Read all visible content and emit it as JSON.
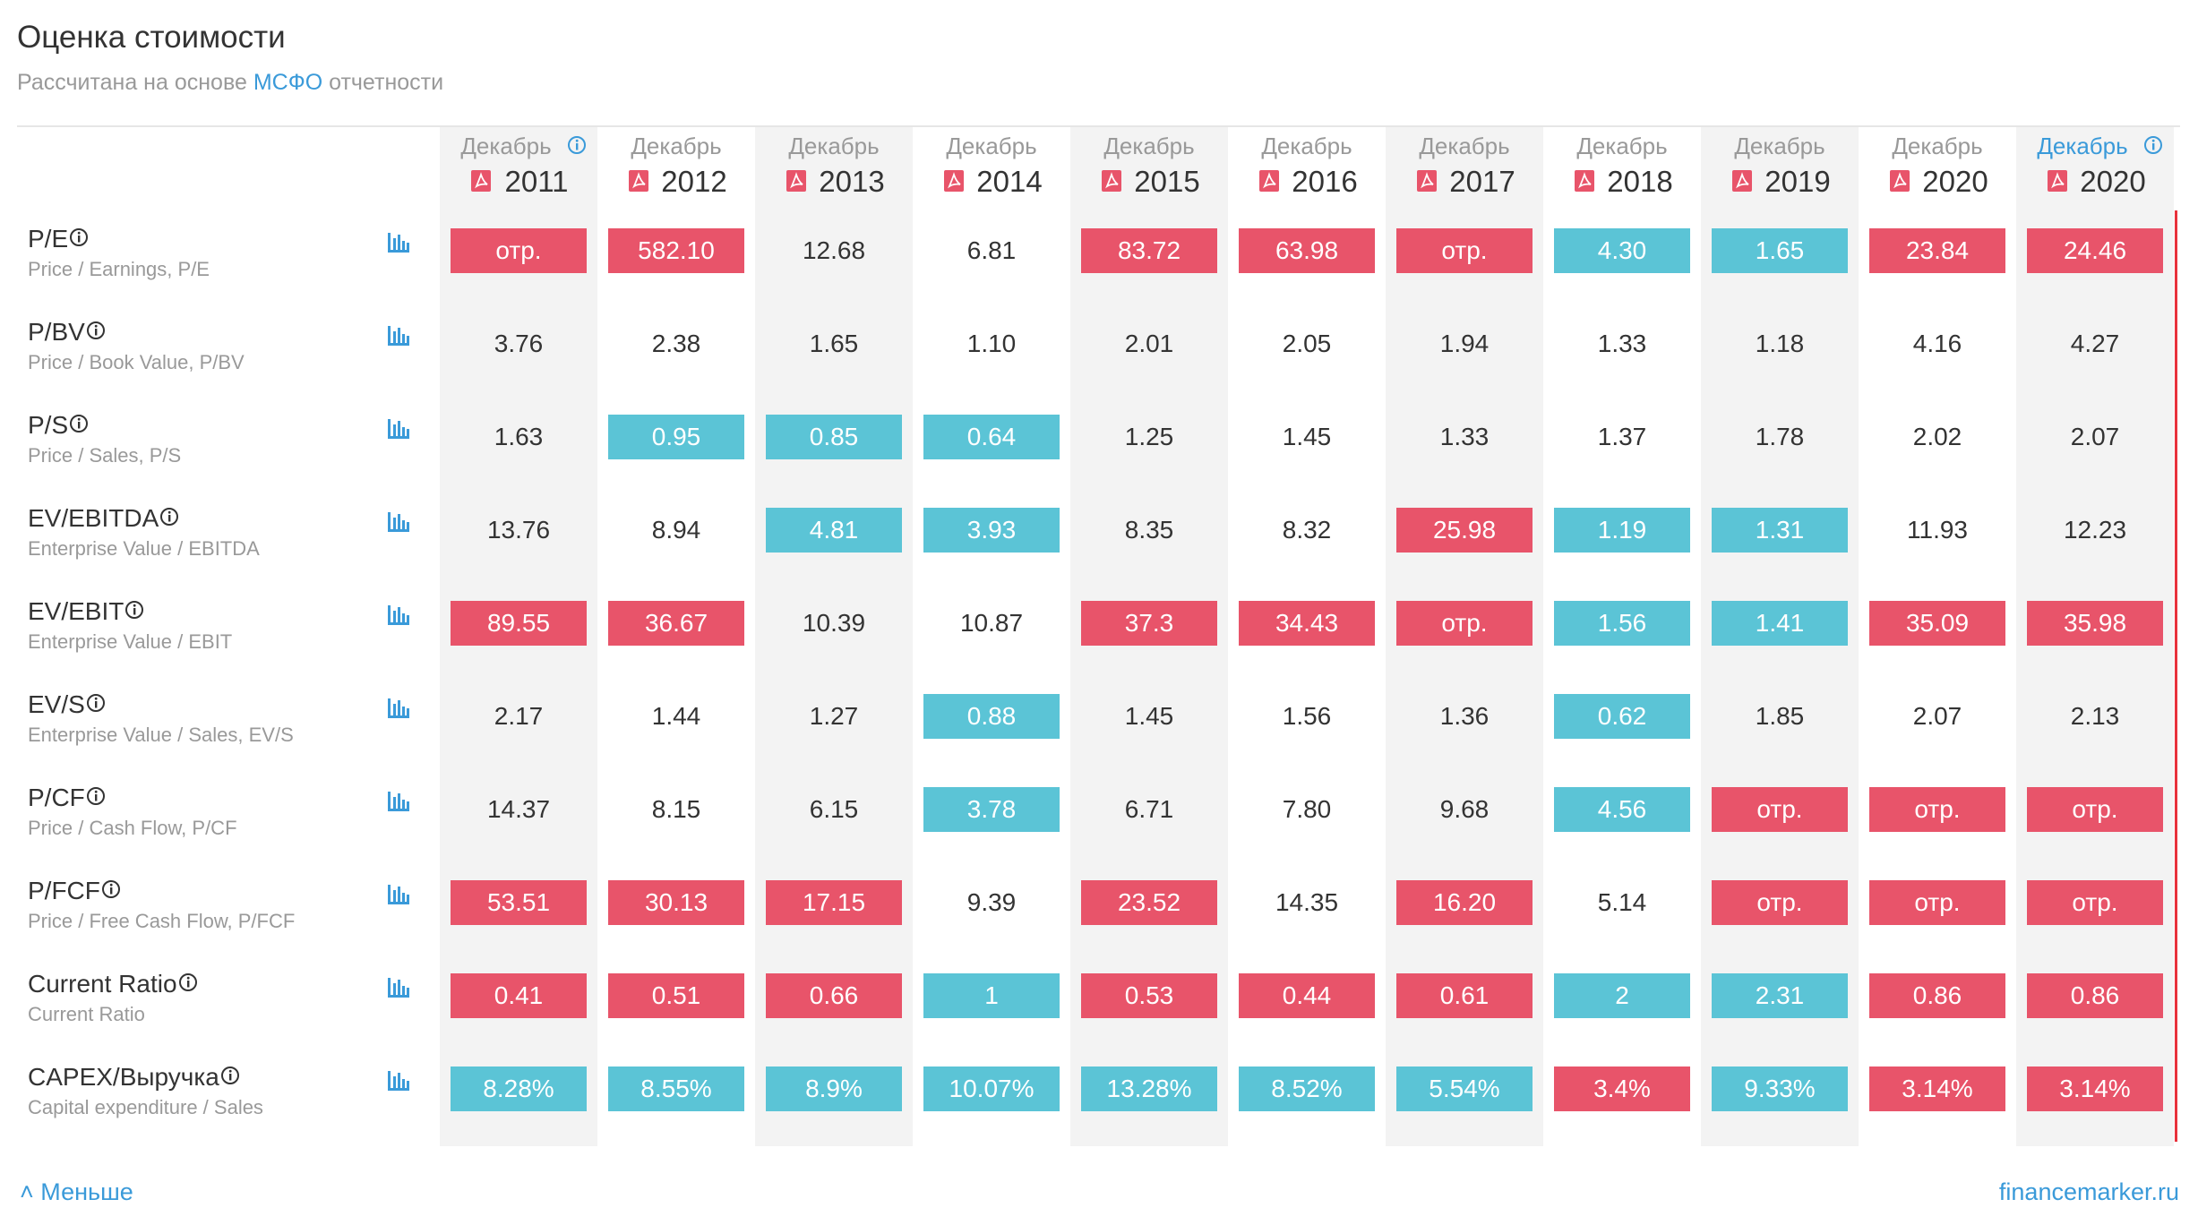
{
  "header": {
    "title": "Оценка стоимости",
    "subtitle_prefix": "Рассчитана на основе ",
    "subtitle_link": "МСФО",
    "subtitle_suffix": " отчетности"
  },
  "columns": [
    {
      "month": "Декабрь",
      "year": "2011",
      "info": true,
      "current": false
    },
    {
      "month": "Декабрь",
      "year": "2012",
      "info": false,
      "current": false
    },
    {
      "month": "Декабрь",
      "year": "2013",
      "info": false,
      "current": false
    },
    {
      "month": "Декабрь",
      "year": "2014",
      "info": false,
      "current": false
    },
    {
      "month": "Декабрь",
      "year": "2015",
      "info": false,
      "current": false
    },
    {
      "month": "Декабрь",
      "year": "2016",
      "info": false,
      "current": false
    },
    {
      "month": "Декабрь",
      "year": "2017",
      "info": false,
      "current": false
    },
    {
      "month": "Декабрь",
      "year": "2018",
      "info": false,
      "current": false
    },
    {
      "month": "Декабрь",
      "year": "2019",
      "info": false,
      "current": false
    },
    {
      "month": "Декабрь",
      "year": "2020",
      "info": false,
      "current": false
    },
    {
      "month": "Декабрь",
      "year": "2020",
      "info": true,
      "current": true
    }
  ],
  "rows": [
    {
      "name": "P/E",
      "subtitle": "Price / Earnings, P/E",
      "cells": [
        "отр.",
        "582.10",
        "12.68",
        "6.81",
        "83.72",
        "63.98",
        "отр.",
        "4.30",
        "1.65",
        "23.84",
        "24.46"
      ],
      "tones": [
        "red",
        "red",
        "plain",
        "plain",
        "red",
        "red",
        "red",
        "blue",
        "blue",
        "red",
        "red"
      ]
    },
    {
      "name": "P/BV",
      "subtitle": "Price / Book Value, P/BV",
      "cells": [
        "3.76",
        "2.38",
        "1.65",
        "1.10",
        "2.01",
        "2.05",
        "1.94",
        "1.33",
        "1.18",
        "4.16",
        "4.27"
      ],
      "tones": [
        "plain",
        "plain",
        "plain",
        "plain",
        "plain",
        "plain",
        "plain",
        "plain",
        "plain",
        "plain",
        "plain"
      ]
    },
    {
      "name": "P/S",
      "subtitle": "Price / Sales, P/S",
      "cells": [
        "1.63",
        "0.95",
        "0.85",
        "0.64",
        "1.25",
        "1.45",
        "1.33",
        "1.37",
        "1.78",
        "2.02",
        "2.07"
      ],
      "tones": [
        "plain",
        "blue",
        "blue",
        "blue",
        "plain",
        "plain",
        "plain",
        "plain",
        "plain",
        "plain",
        "plain"
      ]
    },
    {
      "name": "EV/EBITDA",
      "subtitle": "Enterprise Value / EBITDA",
      "cells": [
        "13.76",
        "8.94",
        "4.81",
        "3.93",
        "8.35",
        "8.32",
        "25.98",
        "1.19",
        "1.31",
        "11.93",
        "12.23"
      ],
      "tones": [
        "plain",
        "plain",
        "blue",
        "blue",
        "plain",
        "plain",
        "red",
        "blue",
        "blue",
        "plain",
        "plain"
      ]
    },
    {
      "name": "EV/EBIT",
      "subtitle": "Enterprise Value / EBIT",
      "cells": [
        "89.55",
        "36.67",
        "10.39",
        "10.87",
        "37.3",
        "34.43",
        "отр.",
        "1.56",
        "1.41",
        "35.09",
        "35.98"
      ],
      "tones": [
        "red",
        "red",
        "plain",
        "plain",
        "red",
        "red",
        "red",
        "blue",
        "blue",
        "red",
        "red"
      ]
    },
    {
      "name": "EV/S",
      "subtitle": "Enterprise Value / Sales, EV/S",
      "cells": [
        "2.17",
        "1.44",
        "1.27",
        "0.88",
        "1.45",
        "1.56",
        "1.36",
        "0.62",
        "1.85",
        "2.07",
        "2.13"
      ],
      "tones": [
        "plain",
        "plain",
        "plain",
        "blue",
        "plain",
        "plain",
        "plain",
        "blue",
        "plain",
        "plain",
        "plain"
      ]
    },
    {
      "name": "P/CF",
      "subtitle": "Price / Cash Flow, P/CF",
      "cells": [
        "14.37",
        "8.15",
        "6.15",
        "3.78",
        "6.71",
        "7.80",
        "9.68",
        "4.56",
        "отр.",
        "отр.",
        "отр."
      ],
      "tones": [
        "plain",
        "plain",
        "plain",
        "blue",
        "plain",
        "plain",
        "plain",
        "blue",
        "red",
        "red",
        "red"
      ]
    },
    {
      "name": "P/FCF",
      "subtitle": "Price / Free Cash Flow, P/FCF",
      "cells": [
        "53.51",
        "30.13",
        "17.15",
        "9.39",
        "23.52",
        "14.35",
        "16.20",
        "5.14",
        "отр.",
        "отр.",
        "отр."
      ],
      "tones": [
        "red",
        "red",
        "red",
        "plain",
        "red",
        "plain",
        "red",
        "plain",
        "red",
        "red",
        "red"
      ]
    },
    {
      "name": "Current Ratio",
      "subtitle": "Current Ratio",
      "cells": [
        "0.41",
        "0.51",
        "0.66",
        "1",
        "0.53",
        "0.44",
        "0.61",
        "2",
        "2.31",
        "0.86",
        "0.86"
      ],
      "tones": [
        "red",
        "red",
        "red",
        "blue",
        "red",
        "red",
        "red",
        "blue",
        "blue",
        "red",
        "red"
      ]
    },
    {
      "name": "CAPEX/Выручка",
      "subtitle": "Capital expenditure / Sales",
      "cells": [
        "8.28%",
        "8.55%",
        "8.9%",
        "10.07%",
        "13.28%",
        "8.52%",
        "5.54%",
        "3.4%",
        "9.33%",
        "3.14%",
        "3.14%"
      ],
      "tones": [
        "blue",
        "blue",
        "blue",
        "blue",
        "blue",
        "blue",
        "blue",
        "red",
        "blue",
        "red",
        "red"
      ]
    }
  ],
  "footer": {
    "toggle": "Меньше",
    "brand": "financemarker.ru"
  }
}
